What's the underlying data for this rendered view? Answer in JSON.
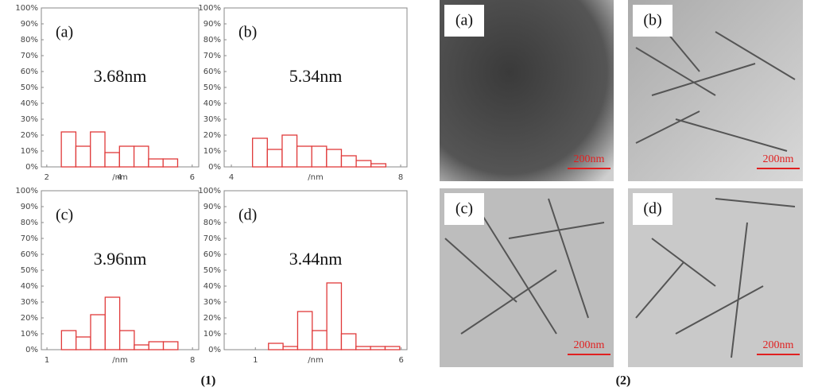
{
  "chart_data": [
    {
      "type": "histogram",
      "label": "(a)",
      "annotation": "3.68nm",
      "xlabel": "/nm",
      "color": "#e03a3a",
      "bins": [
        2.4,
        2.8,
        3.2,
        3.6,
        4.0,
        4.4,
        4.8,
        5.2,
        5.6
      ],
      "values": [
        22,
        13,
        22,
        9,
        13,
        13,
        5,
        5
      ],
      "xlim": [
        1.85,
        6.18
      ],
      "xticks": [
        2,
        4,
        6
      ],
      "ylim": [
        0,
        100
      ],
      "yticks": [
        {
          "value": 0,
          "label": "0%"
        },
        {
          "value": 10,
          "label": "10%"
        },
        {
          "value": 20,
          "label": "20%"
        },
        {
          "value": 30,
          "label": "30%"
        },
        {
          "value": 40,
          "label": "40%"
        },
        {
          "value": 50,
          "label": "50%"
        },
        {
          "value": 60,
          "label": "60%"
        },
        {
          "value": 70,
          "label": "70%"
        },
        {
          "value": 80,
          "label": "80%"
        },
        {
          "value": 90,
          "label": "90%"
        },
        {
          "value": 100,
          "label": "100%"
        }
      ]
    },
    {
      "type": "histogram",
      "label": "(b)",
      "annotation": "5.34nm",
      "xlabel": "/nm",
      "color": "#e03a3a",
      "bins": [
        4.5,
        4.85,
        5.2,
        5.55,
        5.9,
        6.25,
        6.6,
        6.95,
        7.3,
        7.65
      ],
      "values": [
        18,
        11,
        20,
        13,
        13,
        11,
        7,
        4,
        2
      ],
      "xlim": [
        3.83,
        8.15
      ],
      "xticks": [
        4,
        8
      ],
      "ylim": [
        0,
        100
      ],
      "yticks": [
        {
          "value": 0,
          "label": "0%"
        },
        {
          "value": 10,
          "label": "10%"
        },
        {
          "value": 20,
          "label": "20%"
        },
        {
          "value": 30,
          "label": "30%"
        },
        {
          "value": 40,
          "label": "40%"
        },
        {
          "value": 50,
          "label": "50%"
        },
        {
          "value": 60,
          "label": "60%"
        },
        {
          "value": 70,
          "label": "70%"
        },
        {
          "value": 80,
          "label": "80%"
        },
        {
          "value": 90,
          "label": "90%"
        },
        {
          "value": 100,
          "label": "100%"
        }
      ]
    },
    {
      "type": "histogram",
      "label": "(c)",
      "annotation": "3.96nm",
      "xlabel": "/nm",
      "color": "#e03a3a",
      "bins": [
        1.7,
        2.4,
        3.1,
        3.8,
        4.5,
        5.2,
        5.9,
        6.6,
        7.3
      ],
      "values": [
        12,
        8,
        22,
        33,
        12,
        3,
        5,
        5
      ],
      "xlim": [
        0.73,
        8.3
      ],
      "xticks": [
        1,
        8
      ],
      "ylim": [
        0,
        100
      ],
      "yticks": [
        {
          "value": 0,
          "label": "0%"
        },
        {
          "value": 10,
          "label": "10%"
        },
        {
          "value": 20,
          "label": "20%"
        },
        {
          "value": 30,
          "label": "30%"
        },
        {
          "value": 40,
          "label": "40%"
        },
        {
          "value": 50,
          "label": "50%"
        },
        {
          "value": 60,
          "label": "60%"
        },
        {
          "value": 70,
          "label": "70%"
        },
        {
          "value": 80,
          "label": "80%"
        },
        {
          "value": 90,
          "label": "90%"
        },
        {
          "value": 100,
          "label": "100%"
        }
      ]
    },
    {
      "type": "histogram",
      "label": "(d)",
      "annotation": "3.44nm",
      "xlabel": "/nm",
      "color": "#e03a3a",
      "bins": [
        1.45,
        1.95,
        2.45,
        2.95,
        3.45,
        3.95,
        4.45,
        4.95,
        5.45,
        5.95
      ],
      "values": [
        4,
        2,
        24,
        12,
        42,
        10,
        2,
        2,
        2
      ],
      "xlim": [
        -0.07,
        6.2
      ],
      "xticks": [
        1,
        6
      ],
      "ylim": [
        0,
        100
      ],
      "yticks": [
        {
          "value": 0,
          "label": "0%"
        },
        {
          "value": 10,
          "label": "10%"
        },
        {
          "value": 20,
          "label": "20%"
        },
        {
          "value": 30,
          "label": "30%"
        },
        {
          "value": 40,
          "label": "40%"
        },
        {
          "value": 50,
          "label": "50%"
        },
        {
          "value": 60,
          "label": "60%"
        },
        {
          "value": 70,
          "label": "70%"
        },
        {
          "value": 80,
          "label": "80%"
        },
        {
          "value": 90,
          "label": "90%"
        },
        {
          "value": 100,
          "label": "100%"
        }
      ]
    }
  ],
  "images": [
    {
      "label": "(a)",
      "scale": "200nm"
    },
    {
      "label": "(b)",
      "scale": "200nm"
    },
    {
      "label": "(c)",
      "scale": "200nm"
    },
    {
      "label": "(d)",
      "scale": "200nm"
    }
  ],
  "captions": [
    "(1)",
    "(2)"
  ]
}
